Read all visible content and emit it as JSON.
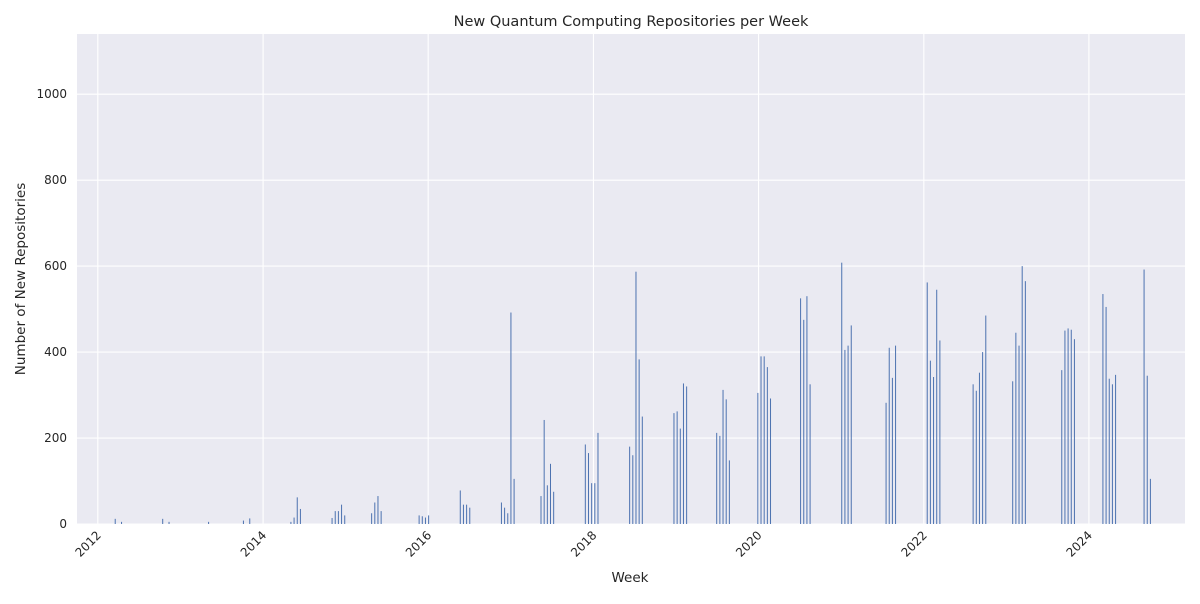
{
  "chart_data": {
    "type": "bar",
    "title": "New Quantum Computing Repositories per Week",
    "xlabel": "Week",
    "ylabel": "Number of New Repositories",
    "x_scale": "date",
    "xlim": [
      "2011-10-01",
      "2025-03-01"
    ],
    "ylim": [
      0,
      1140
    ],
    "grid": true,
    "legend": "none",
    "x_ticks": [
      "2012",
      "2014",
      "2016",
      "2018",
      "2020",
      "2022",
      "2024"
    ],
    "y_ticks": [
      0,
      200,
      400,
      600,
      800,
      1000
    ],
    "colors": {
      "bar": "#4c72b0",
      "plot_bg": "#eaeaf2",
      "grid": "#ffffff",
      "text": "#262626"
    },
    "series": [
      {
        "x": [
          "2012-03-18",
          "2012-04-15",
          "2012-10-14",
          "2012-11-11",
          "2013-05-05",
          "2013-10-06",
          "2013-11-03",
          "2014-05-04",
          "2014-05-18",
          "2014-06-01",
          "2014-06-15",
          "2014-11-02",
          "2014-11-16",
          "2014-11-30",
          "2014-12-14",
          "2014-12-28",
          "2015-04-26",
          "2015-05-10",
          "2015-05-24",
          "2015-06-07",
          "2015-11-22",
          "2015-12-06",
          "2015-12-20",
          "2016-01-03",
          "2016-05-22",
          "2016-06-05",
          "2016-06-19",
          "2016-07-03",
          "2016-11-20",
          "2016-12-04",
          "2016-12-18",
          "2017-01-01",
          "2017-01-15",
          "2017-05-14",
          "2017-05-28",
          "2017-06-11",
          "2017-06-25",
          "2017-07-09",
          "2017-11-26",
          "2017-12-10",
          "2017-12-24",
          "2018-01-07",
          "2018-01-21",
          "2018-06-10",
          "2018-06-24",
          "2018-07-08",
          "2018-07-22",
          "2018-08-05",
          "2018-12-23",
          "2019-01-06",
          "2019-01-20",
          "2019-02-03",
          "2019-02-17",
          "2019-06-30",
          "2019-07-14",
          "2019-07-28",
          "2019-08-11",
          "2019-08-25",
          "2019-12-29",
          "2020-01-12",
          "2020-01-26",
          "2020-02-09",
          "2020-02-23",
          "2020-07-05",
          "2020-07-19",
          "2020-08-02",
          "2020-08-16",
          "2021-01-03",
          "2021-01-17",
          "2021-01-31",
          "2021-02-14",
          "2021-07-18",
          "2021-08-01",
          "2021-08-15",
          "2021-08-29",
          "2022-01-16",
          "2022-01-30",
          "2022-02-13",
          "2022-02-27",
          "2022-03-13",
          "2022-08-07",
          "2022-08-21",
          "2022-09-04",
          "2022-09-18",
          "2022-10-02",
          "2023-01-29",
          "2023-02-12",
          "2023-02-26",
          "2023-03-12",
          "2023-03-26",
          "2023-09-03",
          "2023-09-17",
          "2023-10-01",
          "2023-10-15",
          "2023-10-29",
          "2024-03-03",
          "2024-03-17",
          "2024-03-31",
          "2024-04-14",
          "2024-04-28",
          "2024-09-01",
          "2024-09-15",
          "2024-09-29"
        ],
        "values": [
          12,
          5,
          12,
          5,
          5,
          8,
          13,
          5,
          15,
          62,
          35,
          14,
          30,
          30,
          45,
          20,
          25,
          50,
          65,
          30,
          20,
          18,
          15,
          20,
          78,
          45,
          45,
          38,
          50,
          38,
          25,
          492,
          105,
          65,
          242,
          90,
          140,
          75,
          185,
          165,
          95,
          95,
          212,
          180,
          160,
          587,
          383,
          250,
          258,
          262,
          222,
          327,
          320,
          212,
          205,
          312,
          290,
          148,
          305,
          390,
          390,
          365,
          292,
          525,
          475,
          530,
          325,
          608,
          405,
          415,
          462,
          282,
          410,
          340,
          415,
          562,
          380,
          342,
          545,
          427,
          325,
          310,
          352,
          400,
          485,
          332,
          445,
          415,
          600,
          565,
          358,
          450,
          455,
          452,
          430,
          535,
          505,
          338,
          325,
          347,
          592,
          345,
          105
        ]
      }
    ]
  }
}
